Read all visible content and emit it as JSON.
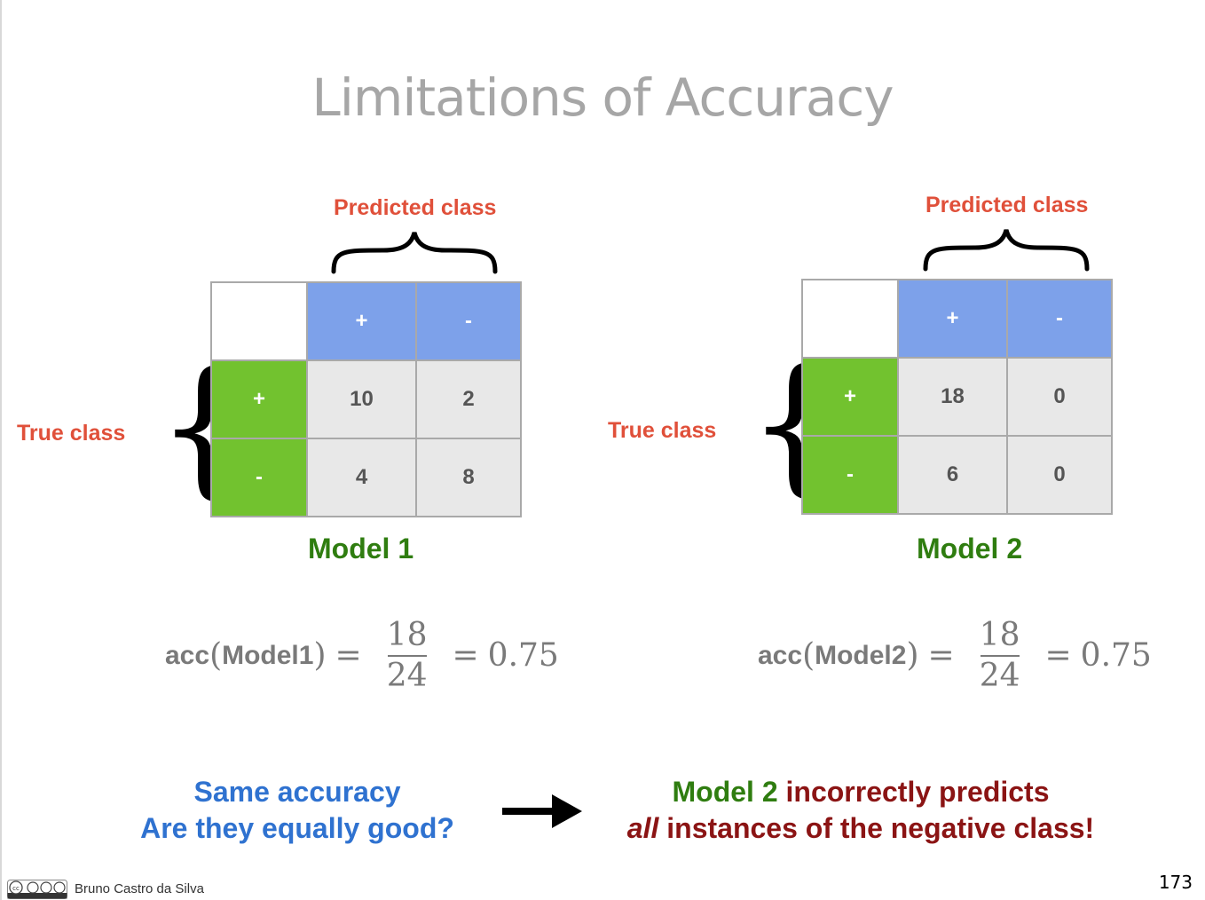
{
  "title": "Limitations of Accuracy",
  "models": [
    {
      "predicted_label": "Predicted class",
      "true_label": "True class",
      "col_headers": [
        "+",
        "-"
      ],
      "row_headers": [
        "+",
        "-"
      ],
      "cells": [
        [
          "10",
          "2"
        ],
        [
          "4",
          "8"
        ]
      ],
      "name": "Model 1",
      "formula": {
        "fn": "acc",
        "arg": "Model1",
        "num": "18",
        "den": "24",
        "result": "0.75"
      }
    },
    {
      "predicted_label": "Predicted class",
      "true_label": "True class",
      "col_headers": [
        "+",
        "-"
      ],
      "row_headers": [
        "+",
        "-"
      ],
      "cells": [
        [
          "18",
          "0"
        ],
        [
          "6",
          "0"
        ]
      ],
      "name": "Model 2",
      "formula": {
        "fn": "acc",
        "arg": "Model2",
        "num": "18",
        "den": "24",
        "result": "0.75"
      }
    }
  ],
  "bottom_left": {
    "line1": "Same accuracy",
    "line2": "Are they equally good?"
  },
  "bottom_right": {
    "model": "Model 2",
    "line1_rest": " incorrectly predicts",
    "all": "all",
    "line2_rest": " instances of the negative class!"
  },
  "footer": {
    "author": "Bruno Castro da Silva",
    "page": "173",
    "license_icon": "cc-by-nc-nd-icon"
  }
}
